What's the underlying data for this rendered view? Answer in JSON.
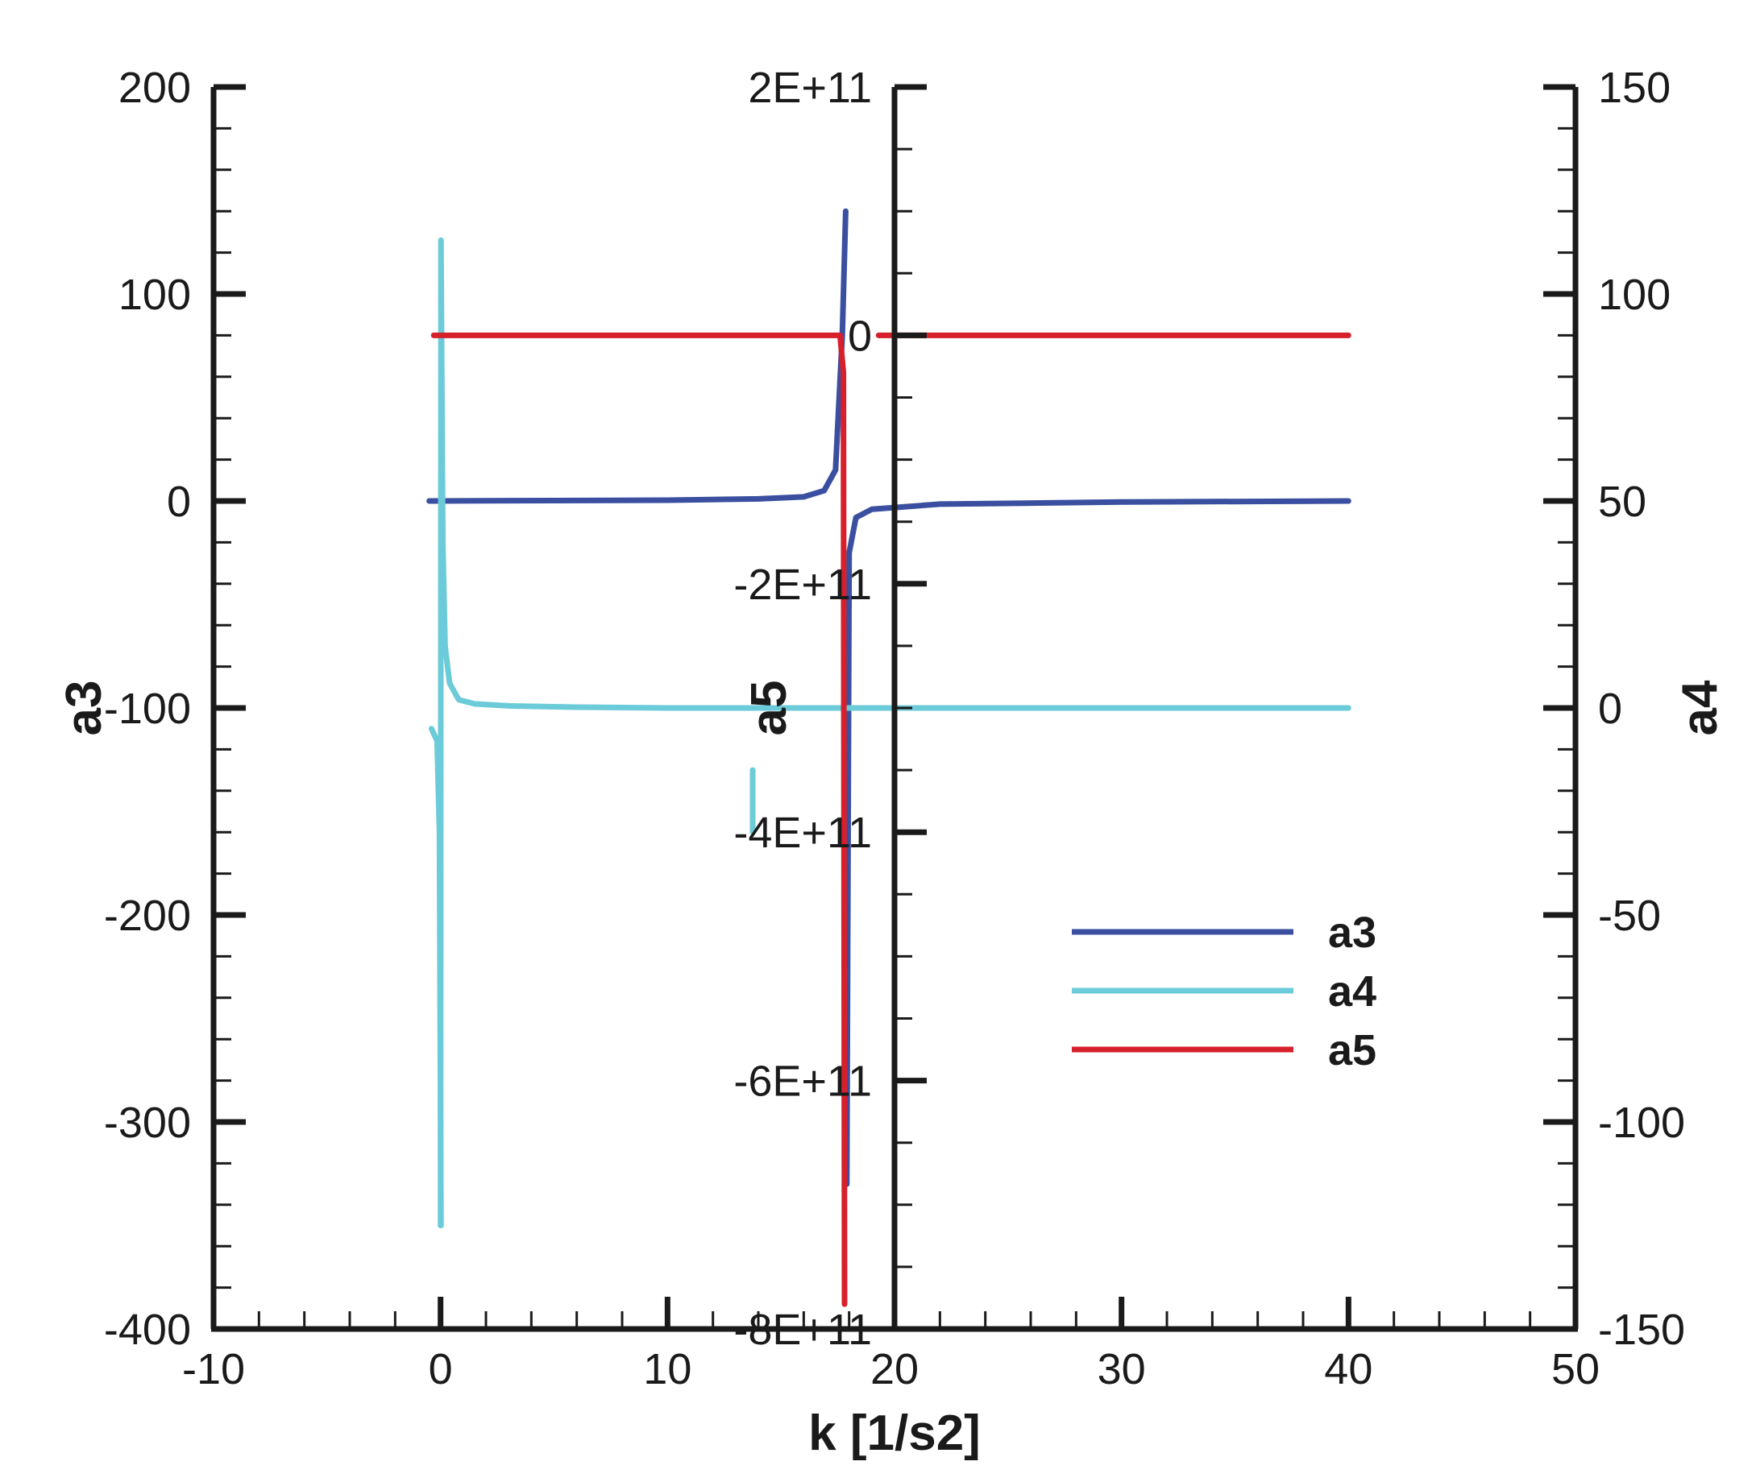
{
  "chart_data": {
    "type": "line",
    "xlabel": "k [1/s2]",
    "xlim": [
      -10,
      50
    ],
    "x_ticks": [
      "-10",
      "0",
      "10",
      "20",
      "30",
      "40",
      "50"
    ],
    "axes": {
      "a3": {
        "label": "a3",
        "side": "left",
        "ylim": [
          -400,
          200
        ],
        "ticks": [
          "200",
          "100",
          "0",
          "-100",
          "-200",
          "-300",
          "-400"
        ]
      },
      "a5": {
        "label": "a5",
        "side": "x=20",
        "ylim": [
          -800000000000.0,
          200000000000.0
        ],
        "ticks": [
          "2E+11",
          "0",
          "-2E+11",
          "-4E+11",
          "-6E+11",
          "-8E+11"
        ]
      },
      "a4": {
        "label": "a4",
        "side": "right",
        "ylim": [
          -150,
          150
        ],
        "ticks": [
          "150",
          "100",
          "50",
          "0",
          "-50",
          "-100",
          "-150"
        ]
      }
    },
    "series": [
      {
        "name": "a3",
        "axis": "a3",
        "color": "#3a4fa0",
        "segments": [
          [
            [
              -0.5,
              0
            ],
            [
              5,
              0.2
            ],
            [
              10,
              0.4
            ],
            [
              14,
              1
            ],
            [
              16,
              2
            ],
            [
              16.9,
              5
            ],
            [
              17.4,
              15
            ],
            [
              17.7,
              80
            ],
            [
              17.85,
              140
            ]
          ],
          [
            [
              17.9,
              -330
            ],
            [
              18.0,
              -25
            ],
            [
              18.3,
              -8
            ],
            [
              19,
              -4
            ],
            [
              22,
              -1.5
            ],
            [
              30,
              -0.5
            ],
            [
              40,
              0
            ]
          ]
        ]
      },
      {
        "name": "a4",
        "axis": "a4",
        "color": "#6ccbd8",
        "segments": [
          [
            [
              -0.4,
              -5
            ],
            [
              -0.15,
              -8
            ],
            [
              -0.05,
              -30
            ],
            [
              0.02,
              -125
            ]
          ],
          [
            [
              0,
              -125
            ],
            [
              0.02,
              113
            ],
            [
              0.1,
              40
            ],
            [
              0.2,
              15
            ],
            [
              0.4,
              6
            ],
            [
              0.8,
              2
            ],
            [
              1.5,
              1
            ],
            [
              3,
              0.5
            ],
            [
              6,
              0.2
            ],
            [
              10,
              0
            ],
            [
              20,
              0
            ],
            [
              40,
              0
            ]
          ],
          [
            [
              13.75,
              -15
            ],
            [
              13.75,
              -30
            ]
          ]
        ]
      },
      {
        "name": "a5",
        "axis": "a5",
        "color": "#d6202c",
        "segments": [
          [
            [
              -0.3,
              0
            ],
            [
              5,
              0
            ],
            [
              10,
              0
            ],
            [
              15,
              0
            ],
            [
              17.6,
              0
            ],
            [
              17.75,
              -30000000000.0
            ],
            [
              17.8,
              -780000000000.0
            ]
          ],
          [
            [
              19.3,
              0
            ],
            [
              22,
              0
            ],
            [
              30,
              0
            ],
            [
              40,
              0
            ]
          ]
        ]
      }
    ],
    "legend": {
      "placement": "lower-right",
      "entries": [
        {
          "name": "a3",
          "color": "#3a4fa0"
        },
        {
          "name": "a4",
          "color": "#6ccbd8"
        },
        {
          "name": "a5",
          "color": "#d6202c"
        }
      ]
    }
  }
}
